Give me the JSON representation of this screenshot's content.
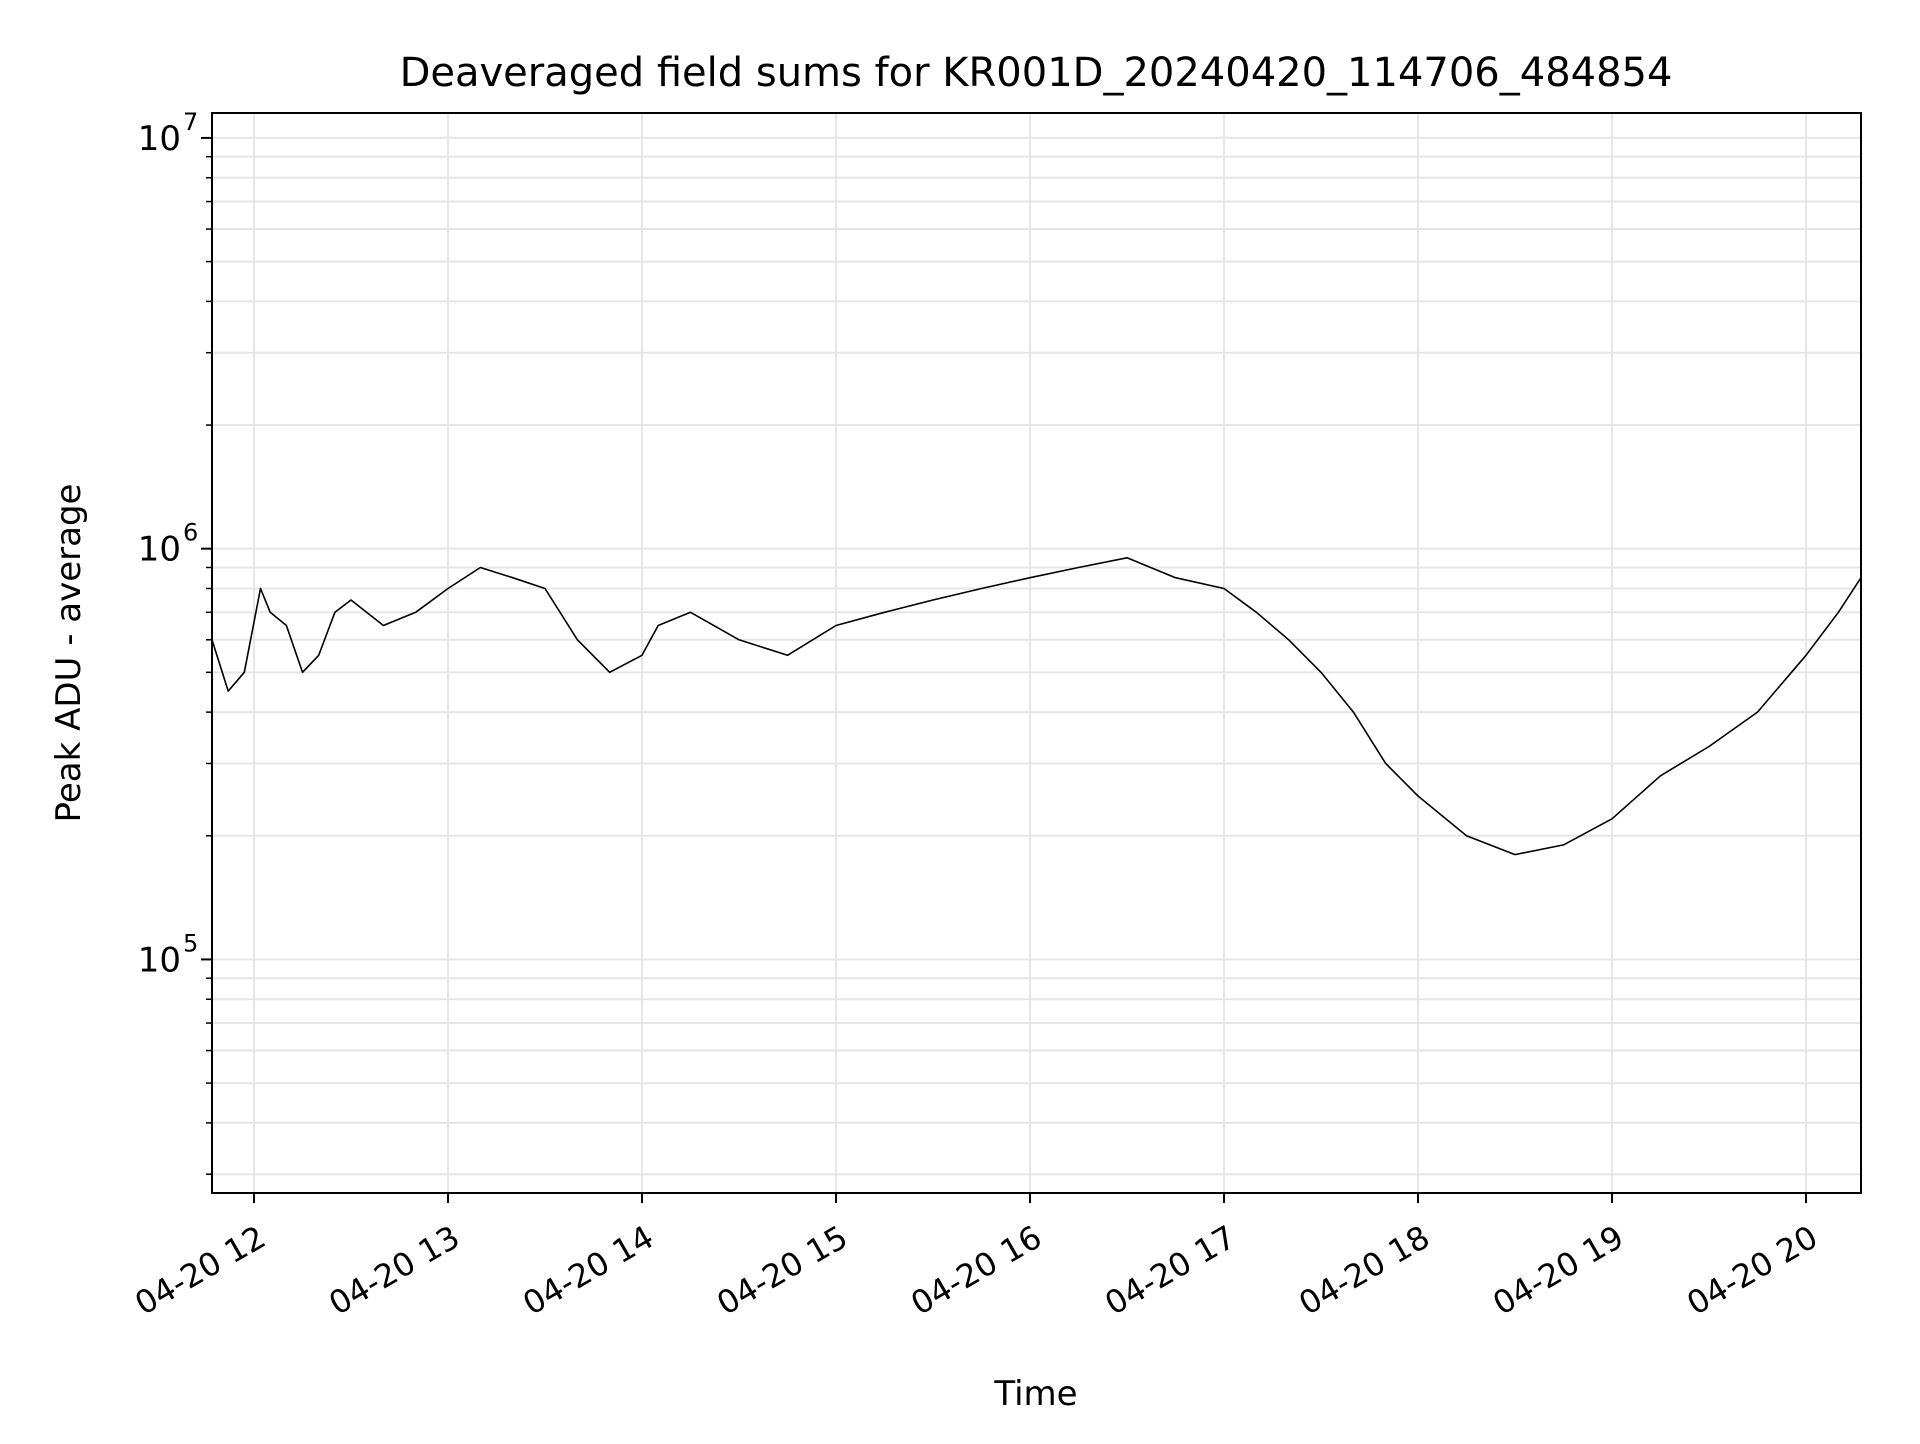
{
  "chart_data": {
    "type": "line",
    "title": "Deaveraged field sums for KR001D_20240420_114706_484854",
    "xlabel": "Time",
    "ylabel": "Peak ADU - average",
    "yscale": "log",
    "ylim": [
      27000,
      11500000
    ],
    "xlim": [
      "2024-04-20 11:47",
      "2024-04-20 20:17"
    ],
    "x_ticks": [
      {
        "value": "2024-04-20 12:00",
        "label": "04-20 12"
      },
      {
        "value": "2024-04-20 13:00",
        "label": "04-20 13"
      },
      {
        "value": "2024-04-20 14:00",
        "label": "04-20 14"
      },
      {
        "value": "2024-04-20 15:00",
        "label": "04-20 15"
      },
      {
        "value": "2024-04-20 16:00",
        "label": "04-20 16"
      },
      {
        "value": "2024-04-20 17:00",
        "label": "04-20 17"
      },
      {
        "value": "2024-04-20 18:00",
        "label": "04-20 18"
      },
      {
        "value": "2024-04-20 19:00",
        "label": "04-20 19"
      },
      {
        "value": "2024-04-20 20:00",
        "label": "04-20 20"
      }
    ],
    "y_ticks": [
      {
        "value": 100000,
        "base": "10",
        "exp": "5"
      },
      {
        "value": 1000000,
        "base": "10",
        "exp": "6"
      },
      {
        "value": 10000000,
        "base": "10",
        "exp": "7"
      }
    ],
    "grid": true,
    "line_color": "#000000",
    "grid_color": "#e6e6e6",
    "series": [
      {
        "x": [
          "2024-04-20 11:47",
          "2024-04-20 11:52",
          "2024-04-20 11:57",
          "2024-04-20 12:02",
          "2024-04-20 12:05",
          "2024-04-20 12:10",
          "2024-04-20 12:15",
          "2024-04-20 12:20",
          "2024-04-20 12:25",
          "2024-04-20 12:30",
          "2024-04-20 12:40",
          "2024-04-20 12:50",
          "2024-04-20 13:00",
          "2024-04-20 13:10",
          "2024-04-20 13:20",
          "2024-04-20 13:30",
          "2024-04-20 13:40",
          "2024-04-20 13:50",
          "2024-04-20 14:00",
          "2024-04-20 14:05",
          "2024-04-20 14:15",
          "2024-04-20 14:30",
          "2024-04-20 14:45",
          "2024-04-20 15:00",
          "2024-04-20 15:15",
          "2024-04-20 15:30",
          "2024-04-20 15:45",
          "2024-04-20 16:00",
          "2024-04-20 16:15",
          "2024-04-20 16:30",
          "2024-04-20 16:45",
          "2024-04-20 17:00",
          "2024-04-20 17:10",
          "2024-04-20 17:20",
          "2024-04-20 17:30",
          "2024-04-20 17:40",
          "2024-04-20 17:50",
          "2024-04-20 18:00",
          "2024-04-20 18:15",
          "2024-04-20 18:30",
          "2024-04-20 18:45",
          "2024-04-20 19:00",
          "2024-04-20 19:15",
          "2024-04-20 19:30",
          "2024-04-20 19:45",
          "2024-04-20 20:00",
          "2024-04-20 20:10",
          "2024-04-20 20:17"
        ],
        "y": [
          600000,
          450000,
          500000,
          800000,
          700000,
          650000,
          500000,
          550000,
          700000,
          750000,
          650000,
          700000,
          800000,
          900000,
          850000,
          800000,
          600000,
          500000,
          550000,
          650000,
          700000,
          600000,
          550000,
          650000,
          700000,
          750000,
          800000,
          850000,
          900000,
          950000,
          850000,
          800000,
          700000,
          600000,
          500000,
          400000,
          300000,
          250000,
          200000,
          180000,
          190000,
          220000,
          280000,
          330000,
          400000,
          550000,
          700000,
          850000
        ]
      }
    ]
  }
}
